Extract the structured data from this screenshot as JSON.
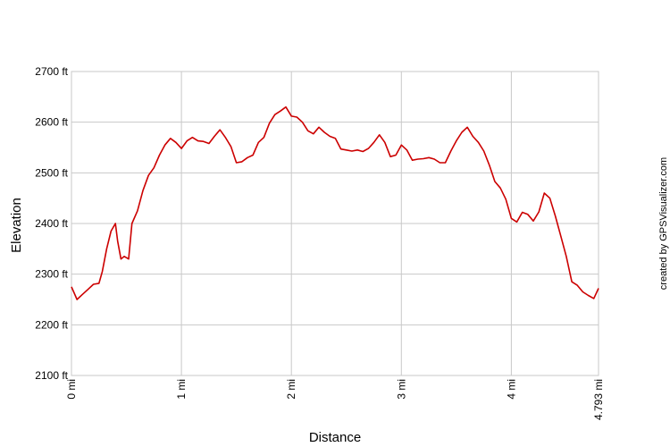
{
  "chart_data": {
    "type": "line",
    "xlabel": "Distance",
    "ylabel": "Elevation",
    "credit": "created by GPSVisualizer.com",
    "xlim": [
      0,
      4.793
    ],
    "ylim": [
      2100,
      2700
    ],
    "x_ticks": [
      {
        "value": 0,
        "label": "0 mi"
      },
      {
        "value": 1,
        "label": "1 mi"
      },
      {
        "value": 2,
        "label": "2 mi"
      },
      {
        "value": 3,
        "label": "3 mi"
      },
      {
        "value": 4,
        "label": "4 mi"
      },
      {
        "value": 4.793,
        "label": "4.793 mi"
      }
    ],
    "y_ticks": [
      {
        "value": 2100,
        "label": "2100 ft"
      },
      {
        "value": 2200,
        "label": "2200 ft"
      },
      {
        "value": 2300,
        "label": "2300 ft"
      },
      {
        "value": 2400,
        "label": "2400 ft"
      },
      {
        "value": 2500,
        "label": "2500 ft"
      },
      {
        "value": 2600,
        "label": "2600 ft"
      },
      {
        "value": 2700,
        "label": "2700 ft"
      }
    ],
    "grid": true,
    "line_color": "#cc0000",
    "series": [
      {
        "x": [
          0,
          0.05,
          0.1,
          0.15,
          0.2,
          0.25,
          0.28,
          0.32,
          0.36,
          0.4,
          0.42,
          0.45,
          0.48,
          0.52,
          0.55,
          0.6,
          0.65,
          0.7,
          0.75,
          0.8,
          0.85,
          0.9,
          0.95,
          1.0,
          1.05,
          1.1,
          1.15,
          1.2,
          1.25,
          1.3,
          1.35,
          1.4,
          1.45,
          1.5,
          1.55,
          1.6,
          1.65,
          1.7,
          1.75,
          1.8,
          1.85,
          1.9,
          1.95,
          2.0,
          2.05,
          2.1,
          2.15,
          2.2,
          2.25,
          2.3,
          2.35,
          2.4,
          2.45,
          2.5,
          2.55,
          2.6,
          2.65,
          2.7,
          2.75,
          2.8,
          2.85,
          2.9,
          2.95,
          3.0,
          3.05,
          3.1,
          3.15,
          3.2,
          3.25,
          3.3,
          3.35,
          3.4,
          3.45,
          3.5,
          3.55,
          3.6,
          3.65,
          3.7,
          3.75,
          3.8,
          3.85,
          3.9,
          3.95,
          4.0,
          4.05,
          4.1,
          4.15,
          4.2,
          4.25,
          4.3,
          4.35,
          4.4,
          4.45,
          4.5,
          4.55,
          4.6,
          4.65,
          4.7,
          4.75,
          4.793
        ],
        "y": [
          2275,
          2250,
          2260,
          2270,
          2280,
          2282,
          2305,
          2350,
          2385,
          2400,
          2365,
          2330,
          2335,
          2330,
          2400,
          2425,
          2465,
          2495,
          2510,
          2535,
          2555,
          2568,
          2560,
          2548,
          2563,
          2570,
          2563,
          2562,
          2558,
          2572,
          2585,
          2570,
          2552,
          2520,
          2522,
          2530,
          2535,
          2560,
          2570,
          2598,
          2615,
          2622,
          2630,
          2612,
          2610,
          2600,
          2583,
          2577,
          2590,
          2580,
          2572,
          2568,
          2547,
          2545,
          2543,
          2545,
          2542,
          2548,
          2560,
          2575,
          2560,
          2532,
          2535,
          2555,
          2545,
          2525,
          2527,
          2528,
          2530,
          2527,
          2520,
          2520,
          2543,
          2563,
          2580,
          2590,
          2572,
          2560,
          2543,
          2515,
          2483,
          2470,
          2448,
          2410,
          2403,
          2422,
          2418,
          2405,
          2423,
          2460,
          2450,
          2415,
          2375,
          2335,
          2285,
          2278,
          2265,
          2258,
          2252,
          2272
        ]
      }
    ]
  }
}
